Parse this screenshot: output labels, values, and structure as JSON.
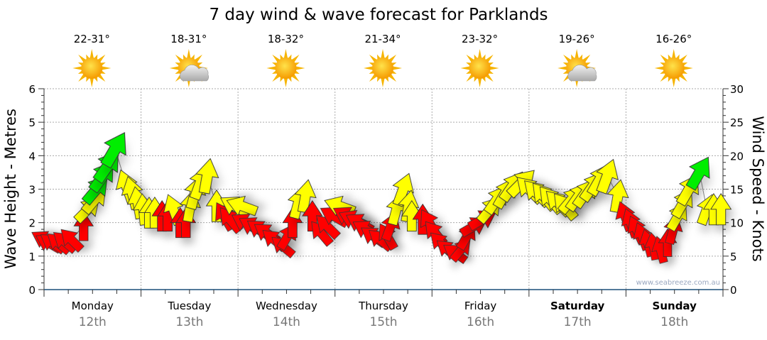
{
  "chart_data": {
    "type": "scatter",
    "title": "7 day wind & wave forecast for Parklands",
    "ylabel": "Wave Height - Metres",
    "y2label": "Wind Speed - Knots",
    "ylim": [
      0,
      6
    ],
    "y2lim": [
      0,
      30
    ],
    "yticks": [
      "0",
      "1",
      "2",
      "3",
      "4",
      "5",
      "6"
    ],
    "y2ticks": [
      "0",
      "5",
      "10",
      "15",
      "20",
      "25",
      "30"
    ],
    "xlim_hours": [
      0,
      168
    ],
    "grid": true,
    "watermark": "www.seabreeze.com.au",
    "days": [
      {
        "day": "Monday",
        "date": "12th",
        "temp": "22-31°",
        "weather": "sunny",
        "bold": false
      },
      {
        "day": "Tuesday",
        "date": "13th",
        "temp": "18-31°",
        "weather": "partly-cloudy",
        "bold": false
      },
      {
        "day": "Wednesday",
        "date": "14th",
        "temp": "18-32°",
        "weather": "sunny",
        "bold": false
      },
      {
        "day": "Thursday",
        "date": "15th",
        "temp": "21-34°",
        "weather": "sunny",
        "bold": false
      },
      {
        "day": "Friday",
        "date": "16th",
        "temp": "23-32°",
        "weather": "sunny",
        "bold": false
      },
      {
        "day": "Saturday",
        "date": "17th",
        "temp": "19-26°",
        "weather": "partly-cloudy",
        "bold": true
      },
      {
        "day": "Sunday",
        "date": "18th",
        "temp": "16-26°",
        "weather": "sunny",
        "bold": true
      }
    ],
    "colors": {
      "r": "#ff0000",
      "y": "#ffff00",
      "g": "#00ee00"
    },
    "wind_arrows_hours_knots_rotation_color": [
      [
        0,
        7.5,
        -60,
        "r"
      ],
      [
        1,
        7,
        -60,
        "r"
      ],
      [
        2,
        7,
        -55,
        "r"
      ],
      [
        3.5,
        7,
        -50,
        "r"
      ],
      [
        5,
        7.2,
        -50,
        "r"
      ],
      [
        6.7,
        7.5,
        -45,
        "r"
      ],
      [
        9.8,
        9.5,
        0,
        "r"
      ],
      [
        10.9,
        12,
        45,
        "y"
      ],
      [
        12.7,
        13.5,
        40,
        "y"
      ],
      [
        13,
        15,
        40,
        "g"
      ],
      [
        14.6,
        17,
        35,
        "g"
      ],
      [
        15.8,
        18.5,
        35,
        "g"
      ],
      [
        17.6,
        21,
        30,
        "g"
      ],
      [
        20.4,
        15.5,
        -20,
        "y"
      ],
      [
        21.8,
        14.5,
        -15,
        "y"
      ],
      [
        23.2,
        13,
        -10,
        "y"
      ],
      [
        24.6,
        12,
        -5,
        "y"
      ],
      [
        26,
        11.5,
        0,
        "y"
      ],
      [
        27.4,
        11.5,
        0,
        "y"
      ],
      [
        29.2,
        11,
        0,
        "r"
      ],
      [
        30.6,
        11,
        0,
        "r"
      ],
      [
        32,
        12,
        -20,
        "y"
      ],
      [
        33.7,
        10,
        0,
        "r"
      ],
      [
        35.1,
        10,
        0,
        "r"
      ],
      [
        36.2,
        12.5,
        10,
        "y"
      ],
      [
        37.4,
        14.5,
        15,
        "y"
      ],
      [
        38.7,
        16,
        20,
        "y"
      ],
      [
        40.4,
        17,
        10,
        "y"
      ],
      [
        42.7,
        12.5,
        0,
        "y"
      ],
      [
        44.6,
        11,
        -30,
        "r"
      ],
      [
        46,
        10.5,
        -40,
        "r"
      ],
      [
        47.1,
        12.5,
        -60,
        "y"
      ],
      [
        48.9,
        12.5,
        -70,
        "y"
      ],
      [
        49.7,
        10,
        -60,
        "r"
      ],
      [
        51.5,
        9.5,
        -60,
        "r"
      ],
      [
        53.3,
        9,
        -55,
        "r"
      ],
      [
        55,
        8.5,
        -55,
        "r"
      ],
      [
        56.8,
        7.5,
        -50,
        "r"
      ],
      [
        59,
        6.5,
        -50,
        "r"
      ],
      [
        60.3,
        8,
        30,
        "r"
      ],
      [
        61.5,
        10,
        0,
        "r"
      ],
      [
        62.9,
        13,
        15,
        "y"
      ],
      [
        64.7,
        14,
        10,
        "y"
      ],
      [
        66.4,
        11,
        0,
        "r"
      ],
      [
        68.5,
        8.5,
        -40,
        "r"
      ],
      [
        70,
        9.5,
        -45,
        "r"
      ],
      [
        71.7,
        11,
        -60,
        "r"
      ],
      [
        73.1,
        12.5,
        -70,
        "y"
      ],
      [
        74.9,
        11,
        -60,
        "r"
      ],
      [
        76.4,
        10.5,
        -65,
        "r"
      ],
      [
        78,
        10,
        -60,
        "r"
      ],
      [
        79.6,
        9,
        -60,
        "r"
      ],
      [
        81.4,
        8,
        -55,
        "r"
      ],
      [
        83.1,
        7.5,
        -50,
        "r"
      ],
      [
        84.9,
        8,
        -30,
        "r"
      ],
      [
        85.8,
        9.5,
        20,
        "r"
      ],
      [
        87.2,
        12,
        15,
        "y"
      ],
      [
        88.9,
        15,
        20,
        "y"
      ],
      [
        90.2,
        12.5,
        10,
        "y"
      ],
      [
        91,
        11,
        0,
        "y"
      ],
      [
        93.7,
        10.5,
        0,
        "r"
      ],
      [
        95.3,
        10,
        -30,
        "r"
      ],
      [
        96.7,
        8.5,
        -40,
        "r"
      ],
      [
        98.1,
        7,
        -45,
        "r"
      ],
      [
        99.8,
        6,
        -50,
        "r"
      ],
      [
        101.6,
        5.5,
        -55,
        "r"
      ],
      [
        103.3,
        6,
        40,
        "r"
      ],
      [
        104.7,
        8,
        30,
        "r"
      ],
      [
        106.5,
        9.5,
        60,
        "r"
      ],
      [
        108.6,
        10.5,
        60,
        "r"
      ],
      [
        110.4,
        12,
        40,
        "y"
      ],
      [
        112.1,
        13.5,
        35,
        "y"
      ],
      [
        114.2,
        14.5,
        30,
        "y"
      ],
      [
        116,
        15.5,
        35,
        "y"
      ],
      [
        118.3,
        16,
        45,
        "y"
      ],
      [
        120,
        15,
        -45,
        "y"
      ],
      [
        121.8,
        14.5,
        -45,
        "y"
      ],
      [
        123.6,
        14,
        -40,
        "y"
      ],
      [
        125.3,
        13.5,
        -40,
        "y"
      ],
      [
        127.1,
        13,
        -45,
        "y"
      ],
      [
        128.8,
        12.5,
        -40,
        "y"
      ],
      [
        130.6,
        13.5,
        40,
        "y"
      ],
      [
        132.3,
        14,
        35,
        "y"
      ],
      [
        134.1,
        14.5,
        35,
        "y"
      ],
      [
        135.9,
        15.5,
        35,
        "y"
      ],
      [
        137.6,
        16.5,
        30,
        "y"
      ],
      [
        139.4,
        17,
        20,
        "y"
      ],
      [
        142,
        14,
        10,
        "y"
      ],
      [
        143.8,
        11,
        -20,
        "r"
      ],
      [
        145.2,
        10,
        -20,
        "r"
      ],
      [
        146.6,
        9,
        -25,
        "r"
      ],
      [
        148,
        8,
        -20,
        "r"
      ],
      [
        149.4,
        7,
        -15,
        "r"
      ],
      [
        150.8,
        6.5,
        -10,
        "r"
      ],
      [
        152.5,
        6,
        -15,
        "r"
      ],
      [
        154.3,
        7,
        0,
        "r"
      ],
      [
        155.7,
        9,
        15,
        "r"
      ],
      [
        156.9,
        11,
        30,
        "y"
      ],
      [
        158.2,
        13,
        30,
        "y"
      ],
      [
        159.6,
        15,
        30,
        "y"
      ],
      [
        162.2,
        17.5,
        30,
        "g"
      ],
      [
        164,
        12,
        20,
        "y"
      ],
      [
        165.7,
        12,
        0,
        "y"
      ],
      [
        167.5,
        12,
        0,
        "y"
      ]
    ]
  }
}
